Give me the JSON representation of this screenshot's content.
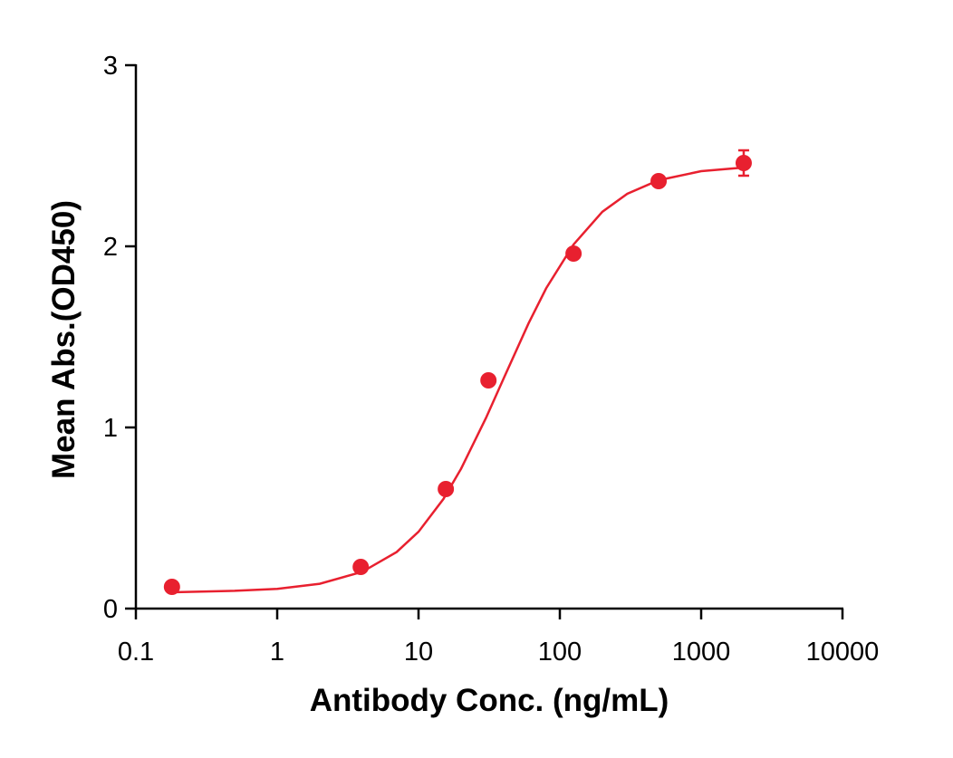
{
  "chart_data": {
    "type": "scatter",
    "x_label": "Antibody Conc. (ng/mL)",
    "y_label": "Mean Abs.(OD450)",
    "xscale": "log",
    "xlim": [
      0.1,
      10000
    ],
    "xticks": [
      0.1,
      1,
      10,
      100,
      1000,
      10000
    ],
    "ylim": [
      0,
      3
    ],
    "yticks": [
      0,
      1,
      2,
      3
    ],
    "color": "#e8202f",
    "x": [
      0.18,
      3.9,
      15.6,
      31.25,
      125,
      500,
      2000
    ],
    "values": [
      0.12,
      0.23,
      0.66,
      1.26,
      1.96,
      2.36,
      2.46
    ],
    "errors": [
      null,
      null,
      null,
      null,
      null,
      null,
      0.07
    ],
    "curve": {
      "x": [
        0.18,
        0.5,
        1,
        2,
        4,
        7,
        10,
        15,
        20,
        30,
        40,
        60,
        80,
        125,
        200,
        300,
        500,
        1000,
        2000
      ],
      "values": [
        0.09,
        0.098,
        0.109,
        0.137,
        0.203,
        0.312,
        0.424,
        0.605,
        0.772,
        1.052,
        1.27,
        1.574,
        1.768,
        2.01,
        2.191,
        2.29,
        2.365,
        2.415,
        2.435
      ]
    }
  }
}
